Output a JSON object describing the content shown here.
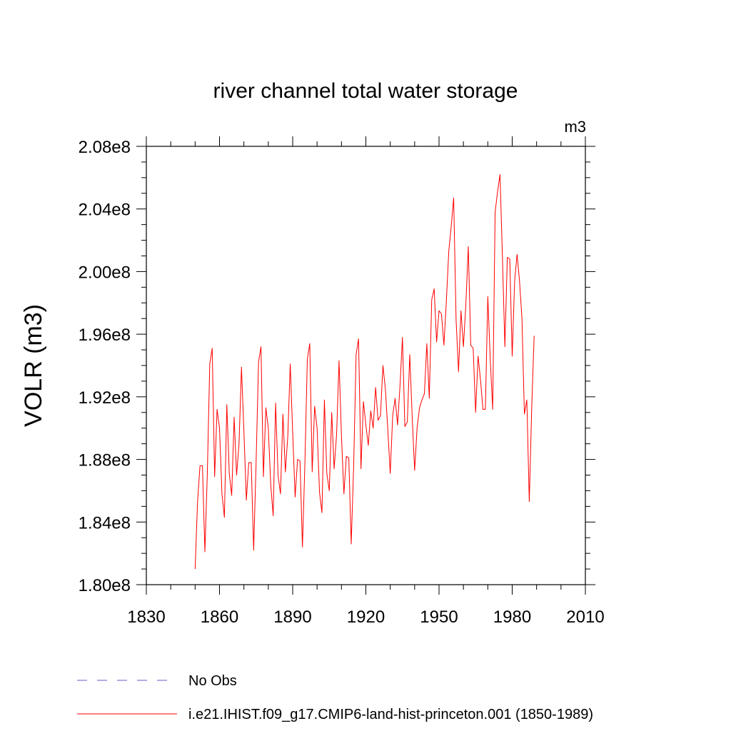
{
  "chart_data": {
    "type": "line",
    "title": "river channel total water storage",
    "units": "m3",
    "ylabel": "VOLR  (m3)",
    "xlabel": "",
    "xlim": [
      1830,
      2010
    ],
    "ylim": [
      180000000,
      208000000
    ],
    "x_ticks": [
      1830,
      1860,
      1890,
      1920,
      1950,
      1980,
      2010
    ],
    "x_tick_labels": [
      "1830",
      "1860",
      "1890",
      "1920",
      "1950",
      "1980",
      "2010"
    ],
    "y_ticks": [
      180000000,
      184000000,
      188000000,
      192000000,
      196000000,
      200000000,
      204000000,
      208000000
    ],
    "y_tick_labels": [
      "1.80e8",
      "1.84e8",
      "1.88e8",
      "1.92e8",
      "1.96e8",
      "2.00e8",
      "2.04e8",
      "2.08e8"
    ],
    "grid": false,
    "legend_position": "bottom",
    "series": [
      {
        "name": "No Obs",
        "color": "#6a5acd",
        "dash": "dashed",
        "x": [],
        "values": []
      },
      {
        "name": "i.e21.IHIST.f09_g17.CMIP6-land-hist-princeton.001 (1850-1989)",
        "color": "#ff0000",
        "dash": "solid",
        "x": [
          1850,
          1851,
          1852,
          1853,
          1854,
          1855,
          1856,
          1857,
          1858,
          1859,
          1860,
          1861,
          1862,
          1863,
          1864,
          1865,
          1866,
          1867,
          1868,
          1869,
          1870,
          1871,
          1872,
          1873,
          1874,
          1875,
          1876,
          1877,
          1878,
          1879,
          1880,
          1881,
          1882,
          1883,
          1884,
          1885,
          1886,
          1887,
          1888,
          1889,
          1890,
          1891,
          1892,
          1893,
          1894,
          1895,
          1896,
          1897,
          1898,
          1899,
          1900,
          1901,
          1902,
          1903,
          1904,
          1905,
          1906,
          1907,
          1908,
          1909,
          1910,
          1911,
          1912,
          1913,
          1914,
          1915,
          1916,
          1917,
          1918,
          1919,
          1920,
          1921,
          1922,
          1923,
          1924,
          1925,
          1926,
          1927,
          1928,
          1929,
          1930,
          1931,
          1932,
          1933,
          1934,
          1935,
          1936,
          1937,
          1938,
          1939,
          1940,
          1941,
          1942,
          1943,
          1944,
          1945,
          1946,
          1947,
          1948,
          1949,
          1950,
          1951,
          1952,
          1953,
          1954,
          1955,
          1956,
          1957,
          1958,
          1959,
          1960,
          1961,
          1962,
          1963,
          1964,
          1965,
          1966,
          1967,
          1968,
          1969,
          1970,
          1971,
          1972,
          1973,
          1974,
          1975,
          1976,
          1977,
          1978,
          1979,
          1980,
          1981,
          1982,
          1983,
          1984,
          1985,
          1986,
          1987,
          1988,
          1989
        ],
        "values": [
          181.0,
          185.3,
          187.6,
          187.6,
          182.1,
          187.1,
          194.1,
          195.1,
          186.9,
          191.2,
          190.0,
          185.8,
          184.3,
          191.5,
          187.1,
          185.7,
          190.7,
          187.0,
          189.0,
          193.9,
          189.8,
          185.4,
          187.8,
          187.8,
          182.2,
          187.8,
          194.2,
          195.2,
          186.9,
          191.3,
          190.0,
          186.4,
          184.4,
          191.6,
          187.0,
          185.8,
          190.9,
          187.2,
          189.5,
          194.1,
          189.7,
          185.6,
          188.0,
          187.9,
          182.4,
          187.7,
          194.4,
          195.4,
          187.2,
          191.4,
          190.0,
          185.9,
          184.6,
          191.8,
          187.1,
          186.0,
          191.0,
          187.4,
          189.6,
          194.3,
          189.5,
          185.8,
          188.2,
          188.1,
          182.6,
          187.6,
          194.7,
          195.7,
          187.4,
          191.7,
          190.2,
          188.9,
          191.1,
          190.0,
          192.6,
          190.5,
          190.8,
          194.0,
          192.5,
          189.9,
          187.1,
          190.8,
          191.9,
          190.2,
          192.7,
          195.8,
          190.1,
          190.4,
          194.7,
          190.7,
          187.3,
          190.0,
          191.3,
          191.8,
          192.2,
          195.4,
          191.9,
          198.2,
          198.9,
          195.5,
          197.5,
          197.3,
          195.3,
          198.1,
          201.3,
          202.9,
          204.7,
          196.9,
          193.6,
          197.5,
          195.2,
          197.9,
          201.6,
          195.3,
          195.1,
          191.0,
          194.6,
          193.1,
          191.2,
          191.2,
          198.4,
          194.4,
          191.2,
          203.8,
          205.1,
          206.2,
          200.9,
          195.2,
          200.9,
          200.8,
          194.6,
          199.4,
          201.1,
          199.4,
          197.0,
          190.9,
          191.8,
          185.3,
          191.3,
          195.9
        ]
      }
    ]
  }
}
